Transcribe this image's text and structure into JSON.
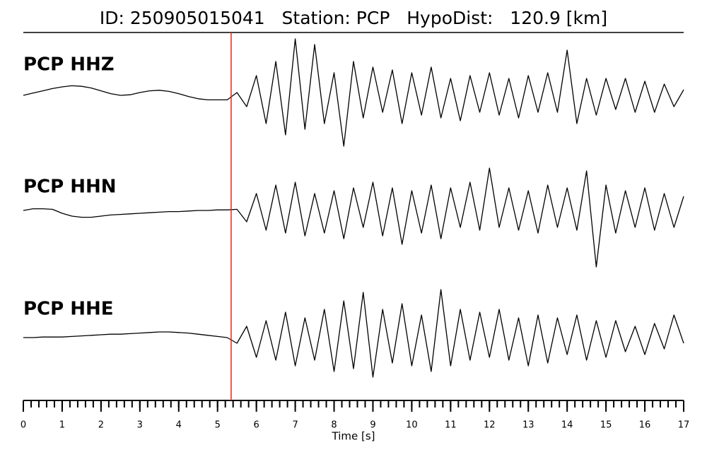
{
  "chart_data": {
    "type": "line",
    "title": "ID: 250905015041   Station: PCP   HypoDist:   120.9 [km]",
    "xlabel": "Time [s]",
    "xlim": [
      0,
      17
    ],
    "xticks": [
      0,
      1,
      2,
      3,
      4,
      5,
      6,
      7,
      8,
      9,
      10,
      11,
      12,
      13,
      14,
      15,
      16,
      17
    ],
    "minor_tick_step": 0.2,
    "ylim": [
      -1,
      1
    ],
    "label_color": "#4a9a08",
    "pick_time": 5.35,
    "pick_color": "#e8231f",
    "x": [
      0,
      0.25,
      0.5,
      0.75,
      1,
      1.25,
      1.5,
      1.75,
      2,
      2.25,
      2.5,
      2.75,
      3,
      3.25,
      3.5,
      3.75,
      4,
      4.25,
      4.5,
      4.75,
      5,
      5.25,
      5.5,
      5.75,
      6,
      6.25,
      6.5,
      6.75,
      7,
      7.25,
      7.5,
      7.75,
      8,
      8.25,
      8.5,
      8.75,
      9,
      9.25,
      9.5,
      9.75,
      10,
      10.25,
      10.5,
      10.75,
      11,
      11.25,
      11.5,
      11.75,
      12,
      12.25,
      12.5,
      12.75,
      13,
      13.25,
      13.5,
      13.75,
      14,
      14.25,
      14.5,
      14.75,
      15,
      15.25,
      15.5,
      15.75,
      16,
      16.25,
      16.5,
      16.75,
      17
    ],
    "series": [
      {
        "name": "PCP HHZ",
        "color": "#000000",
        "values": [
          0,
          0.04,
          0.08,
          0.12,
          0.15,
          0.17,
          0.16,
          0.13,
          0.08,
          0.03,
          0,
          0.01,
          0.05,
          0.08,
          0.09,
          0.07,
          0.03,
          -0.02,
          -0.06,
          -0.08,
          -0.08,
          -0.08,
          0.05,
          -0.2,
          0.35,
          -0.5,
          0.6,
          -0.7,
          1.0,
          -0.6,
          0.9,
          -0.5,
          0.4,
          -0.9,
          0.6,
          -0.4,
          0.5,
          -0.3,
          0.45,
          -0.5,
          0.4,
          -0.35,
          0.5,
          -0.4,
          0.3,
          -0.45,
          0.35,
          -0.3,
          0.4,
          -0.35,
          0.3,
          -0.4,
          0.35,
          -0.3,
          0.4,
          -0.3,
          0.8,
          -0.5,
          0.3,
          -0.35,
          0.3,
          -0.25,
          0.3,
          -0.3,
          0.25,
          -0.3,
          0.2,
          -0.2,
          0.1
        ]
      },
      {
        "name": "PCP HHN",
        "color": "#000000",
        "values": [
          0,
          0.03,
          0.03,
          0.02,
          -0.05,
          -0.1,
          -0.12,
          -0.12,
          -0.1,
          -0.08,
          -0.07,
          -0.06,
          -0.05,
          -0.04,
          -0.03,
          -0.02,
          -0.02,
          -0.01,
          0,
          0,
          0.01,
          0.01,
          0.02,
          -0.2,
          0.3,
          -0.35,
          0.45,
          -0.4,
          0.5,
          -0.45,
          0.3,
          -0.4,
          0.35,
          -0.5,
          0.4,
          -0.3,
          0.5,
          -0.45,
          0.4,
          -0.6,
          0.35,
          -0.4,
          0.45,
          -0.5,
          0.4,
          -0.3,
          0.5,
          -0.35,
          0.75,
          -0.3,
          0.4,
          -0.35,
          0.35,
          -0.4,
          0.45,
          -0.3,
          0.4,
          -0.35,
          0.7,
          -1.0,
          0.45,
          -0.4,
          0.35,
          -0.3,
          0.4,
          -0.35,
          0.3,
          -0.3,
          0.25
        ]
      },
      {
        "name": "PCP HHE",
        "color": "#000000",
        "values": [
          0,
          0,
          0.01,
          0.01,
          0.01,
          0.02,
          0.03,
          0.04,
          0.05,
          0.06,
          0.06,
          0.07,
          0.08,
          0.09,
          0.1,
          0.1,
          0.09,
          0.08,
          0.06,
          0.04,
          0.02,
          0,
          -0.1,
          0.2,
          -0.35,
          0.3,
          -0.4,
          0.45,
          -0.5,
          0.35,
          -0.4,
          0.5,
          -0.6,
          0.65,
          -0.55,
          0.8,
          -0.7,
          0.5,
          -0.45,
          0.6,
          -0.5,
          0.4,
          -0.6,
          0.85,
          -0.5,
          0.5,
          -0.4,
          0.45,
          -0.35,
          0.5,
          -0.4,
          0.35,
          -0.5,
          0.4,
          -0.45,
          0.35,
          -0.3,
          0.4,
          -0.4,
          0.3,
          -0.35,
          0.3,
          -0.25,
          0.2,
          -0.3,
          0.25,
          -0.2,
          0.4,
          -0.1
        ]
      }
    ]
  }
}
